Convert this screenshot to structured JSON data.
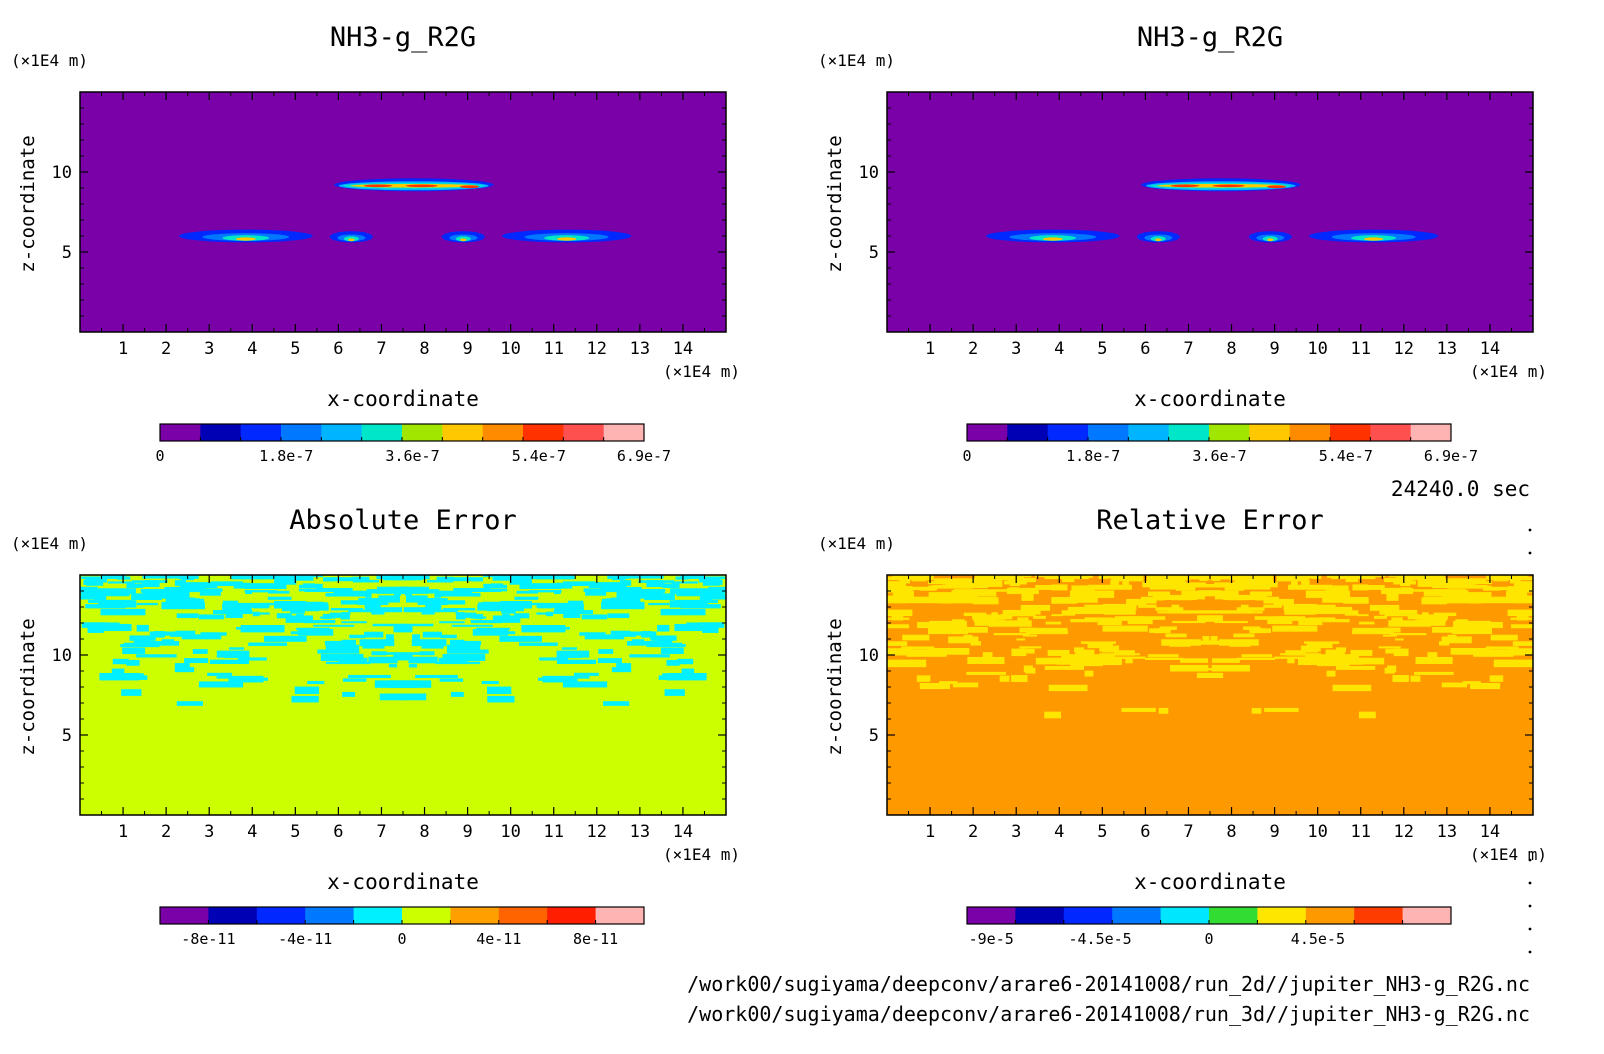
{
  "time_label": "24240.0 sec",
  "file_paths": [
    "/work00/sugiyama/deepconv/arare6-20141008/run_2d//jupiter_NH3-g_R2G.nc",
    "/work00/sugiyama/deepconv/arare6-20141008/run_3d//jupiter_NH3-g_R2G.nc"
  ],
  "chart_data": [
    {
      "type": "heatmap",
      "title": "NH3-g_R2G",
      "xlabel": "x-coordinate",
      "ylabel": "z-coordinate",
      "x_unit": "(×1E4 m)",
      "y_unit": "(×1E4 m)",
      "xlim": [
        0,
        15
      ],
      "ylim": [
        0,
        15
      ],
      "xticks": [
        1,
        2,
        3,
        4,
        5,
        6,
        7,
        8,
        9,
        10,
        11,
        12,
        13,
        14
      ],
      "yticks": [
        5,
        10
      ],
      "background_color": "#7a00a8",
      "features": [
        {
          "kind": "cloud_band",
          "x": [
            5.9,
            9.6
          ],
          "z": [
            8.8,
            9.6
          ],
          "peak": 5.4e-07
        },
        {
          "kind": "cloud_blob",
          "x": [
            2.3,
            5.4
          ],
          "z": [
            5.6,
            6.4
          ],
          "peak": 3.6e-07
        },
        {
          "kind": "cloud_blob",
          "x": [
            5.8,
            6.8
          ],
          "z": [
            5.6,
            6.3
          ],
          "peak": 3.6e-07
        },
        {
          "kind": "cloud_blob",
          "x": [
            8.4,
            9.4
          ],
          "z": [
            5.6,
            6.3
          ],
          "peak": 3.6e-07
        },
        {
          "kind": "cloud_blob",
          "x": [
            9.8,
            12.8
          ],
          "z": [
            5.6,
            6.4
          ],
          "peak": 3.6e-07
        }
      ],
      "colorbar": {
        "levels": 12,
        "colors": [
          "#7a00a8",
          "#0000b4",
          "#0028ff",
          "#0078ff",
          "#00b4ff",
          "#00e6c8",
          "#a0e600",
          "#ffc800",
          "#ff8c00",
          "#ff3200",
          "#ff5050",
          "#ffb4b4"
        ],
        "tick_labels": [
          "0",
          "1.8e-7",
          "3.6e-7",
          "5.4e-7",
          "6.9e-7"
        ],
        "tick_values": [
          0,
          1.8e-07,
          3.6e-07,
          5.4e-07,
          6.9e-07
        ],
        "vmin": 0,
        "vmax": 6.9e-07
      }
    },
    {
      "type": "heatmap",
      "title": "NH3-g_R2G",
      "xlabel": "x-coordinate",
      "ylabel": "z-coordinate",
      "x_unit": "(×1E4 m)",
      "y_unit": "(×1E4 m)",
      "xlim": [
        0,
        15
      ],
      "ylim": [
        0,
        15
      ],
      "xticks": [
        1,
        2,
        3,
        4,
        5,
        6,
        7,
        8,
        9,
        10,
        11,
        12,
        13,
        14
      ],
      "yticks": [
        5,
        10
      ],
      "background_color": "#7a00a8",
      "features": [
        {
          "kind": "cloud_band",
          "x": [
            5.9,
            9.6
          ],
          "z": [
            8.8,
            9.6
          ],
          "peak": 5.4e-07
        },
        {
          "kind": "cloud_blob",
          "x": [
            2.3,
            5.4
          ],
          "z": [
            5.6,
            6.4
          ],
          "peak": 3.6e-07
        },
        {
          "kind": "cloud_blob",
          "x": [
            5.8,
            6.8
          ],
          "z": [
            5.6,
            6.3
          ],
          "peak": 3.6e-07
        },
        {
          "kind": "cloud_blob",
          "x": [
            8.4,
            9.4
          ],
          "z": [
            5.6,
            6.3
          ],
          "peak": 3.6e-07
        },
        {
          "kind": "cloud_blob",
          "x": [
            9.8,
            12.8
          ],
          "z": [
            5.6,
            6.4
          ],
          "peak": 3.6e-07
        }
      ],
      "colorbar": {
        "levels": 12,
        "colors": [
          "#7a00a8",
          "#0000b4",
          "#0028ff",
          "#0078ff",
          "#00b4ff",
          "#00e6c8",
          "#a0e600",
          "#ffc800",
          "#ff8c00",
          "#ff3200",
          "#ff5050",
          "#ffb4b4"
        ],
        "tick_labels": [
          "0",
          "1.8e-7",
          "3.6e-7",
          "5.4e-7",
          "6.9e-7"
        ],
        "tick_values": [
          0,
          1.8e-07,
          3.6e-07,
          5.4e-07,
          6.9e-07
        ],
        "vmin": 0,
        "vmax": 6.9e-07
      }
    },
    {
      "type": "heatmap",
      "title": "Absolute Error",
      "xlabel": "x-coordinate",
      "ylabel": "z-coordinate",
      "x_unit": "(×1E4 m)",
      "y_unit": "(×1E4 m)",
      "xlim": [
        0,
        15
      ],
      "ylim": [
        0,
        15
      ],
      "xticks": [
        1,
        2,
        3,
        4,
        5,
        6,
        7,
        8,
        9,
        10,
        11,
        12,
        13,
        14
      ],
      "yticks": [
        5,
        10
      ],
      "background_color": "#ccff00",
      "pattern_color": "#00f0ff",
      "pattern_zmin": 5.6,
      "colorbar": {
        "levels": 10,
        "colors": [
          "#7a00a8",
          "#0000b4",
          "#0028ff",
          "#0078ff",
          "#00f0ff",
          "#ccff00",
          "#ffa000",
          "#ff6400",
          "#ff1e00",
          "#ffb4b4"
        ],
        "tick_labels": [
          "-8e-11",
          "-4e-11",
          "0",
          "4e-11",
          "8e-11"
        ],
        "tick_values": [
          -8e-11,
          -4e-11,
          0,
          4e-11,
          8e-11
        ],
        "vmin": -1e-10,
        "vmax": 1e-10
      }
    },
    {
      "type": "heatmap",
      "title": "Relative Error",
      "xlabel": "x-coordinate",
      "ylabel": "z-coordinate",
      "x_unit": "(×1E4 m)",
      "y_unit": "(×1E4 m)",
      "xlim": [
        0,
        15
      ],
      "ylim": [
        0,
        15
      ],
      "xticks": [
        1,
        2,
        3,
        4,
        5,
        6,
        7,
        8,
        9,
        10,
        11,
        12,
        13,
        14
      ],
      "yticks": [
        5,
        10
      ],
      "background_color": "#ff9900",
      "pattern_color": "#ffe600",
      "pattern_zmin": 5.6,
      "colorbar": {
        "levels": 10,
        "colors": [
          "#7a00a8",
          "#0000b4",
          "#0028ff",
          "#0078ff",
          "#00e6ff",
          "#32dc32",
          "#ffe600",
          "#ff9900",
          "#ff3c00",
          "#ffb4b4"
        ],
        "tick_labels": [
          "-9e-5",
          "-4.5e-5",
          "0",
          "4.5e-5"
        ],
        "tick_values": [
          -9e-05,
          -4.5e-05,
          0,
          4.5e-05
        ],
        "vmin": -0.0001,
        "vmax": 0.0001
      }
    }
  ]
}
